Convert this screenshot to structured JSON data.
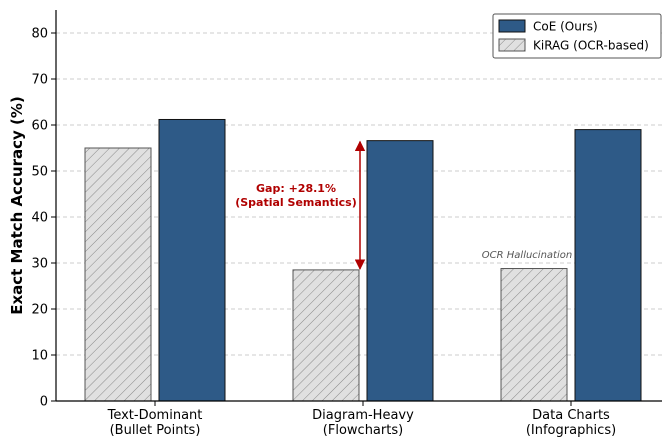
{
  "chart_data": {
    "type": "bar",
    "ylabel": "Exact Match Accuracy (%)",
    "ylim": [
      0,
      85
    ],
    "yticks": [
      0,
      10,
      20,
      30,
      40,
      50,
      60,
      70,
      80
    ],
    "grid": true,
    "legend_position": "top-right",
    "categories": [
      [
        "Text-Dominant",
        "(Bullet Points)"
      ],
      [
        "Diagram-Heavy",
        "(Flowcharts)"
      ],
      [
        "Data Charts",
        "(Infographics)"
      ]
    ],
    "series": [
      {
        "name": "KiRAG (OCR-based)",
        "values": [
          55.0,
          28.5,
          28.8
        ],
        "color": "#e0e0e0",
        "pattern": "hatched"
      },
      {
        "name": "CoE (Ours)",
        "values": [
          61.2,
          56.6,
          59.0
        ],
        "color": "#2e5a87"
      }
    ],
    "annotations": [
      {
        "text": [
          "Gap: +28.1%",
          "(Spatial Semantics)"
        ],
        "category_index": 1,
        "from": 28.5,
        "to": 56.6,
        "color": "#b00000"
      },
      {
        "text": [
          "OCR Hallucination"
        ],
        "category_index": 2,
        "color": "#555555"
      }
    ]
  }
}
